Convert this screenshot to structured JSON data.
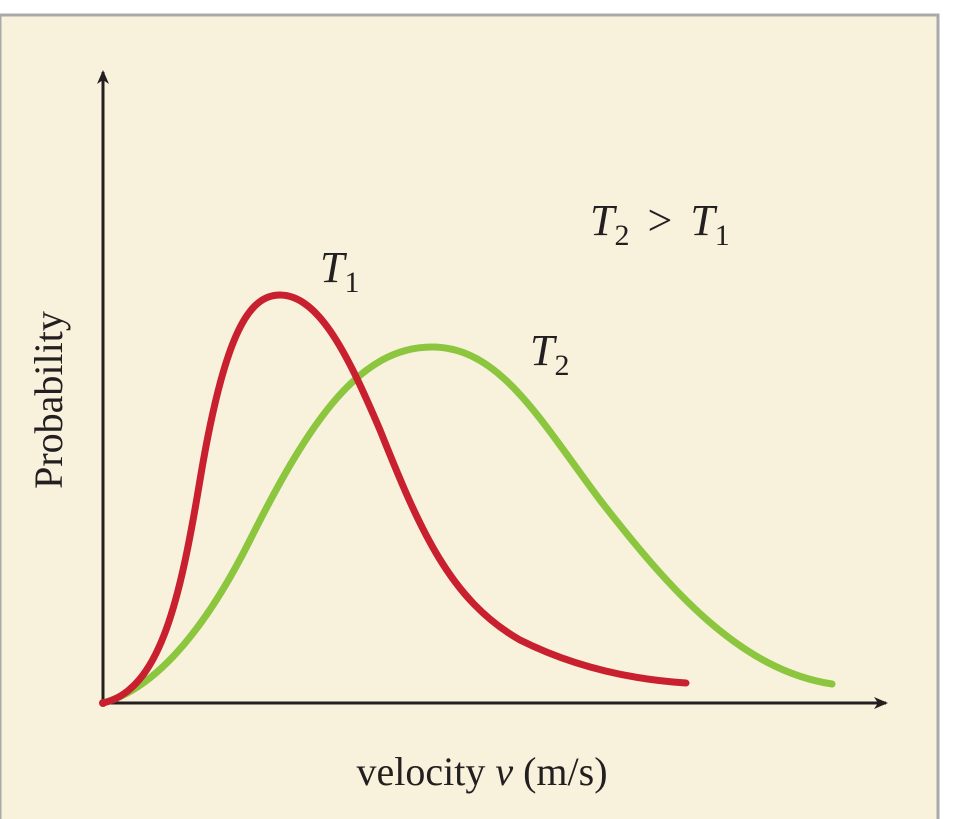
{
  "axes": {
    "y_label": "Probability",
    "x_label": {
      "before": "velocity ",
      "variable": "v",
      "after": " (m/s)"
    }
  },
  "curves": [
    {
      "label": {
        "letter": "T",
        "subscript": "1"
      }
    },
    {
      "label": {
        "letter": "T",
        "subscript": "2"
      }
    }
  ],
  "annotation": {
    "left": {
      "letter": "T",
      "subscript": "2"
    },
    "operator": ">",
    "right": {
      "letter": "T",
      "subscript": "1"
    }
  }
}
